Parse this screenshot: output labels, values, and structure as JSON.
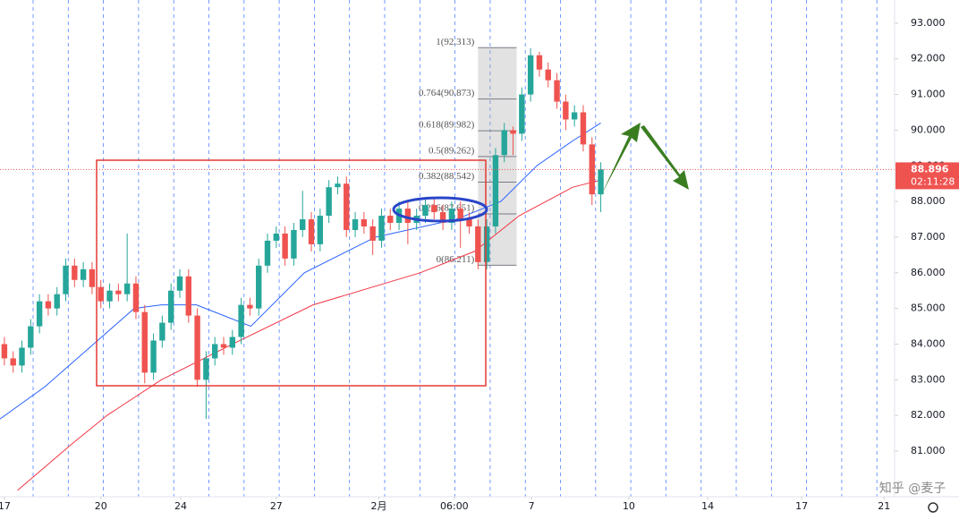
{
  "chart_data": {
    "type": "candlestick",
    "xlim": [
      -0.5,
      101.5
    ],
    "ylim": [
      79.72,
      93.65
    ],
    "yticks": [
      {
        "value": 81,
        "label": "81.000"
      },
      {
        "value": 82,
        "label": "82.000"
      },
      {
        "value": 83,
        "label": "83.000"
      },
      {
        "value": 84,
        "label": "84.000"
      },
      {
        "value": 85,
        "label": "85.000"
      },
      {
        "value": 86,
        "label": "86.000"
      },
      {
        "value": 87,
        "label": "87.000"
      },
      {
        "value": 88,
        "label": "88.000"
      },
      {
        "value": 89,
        "label": "89.000"
      },
      {
        "value": 90,
        "label": "90.000"
      },
      {
        "value": 91,
        "label": "91.000"
      },
      {
        "value": 92,
        "label": "92.000"
      },
      {
        "value": 93,
        "label": "93.000"
      }
    ],
    "xticks": [
      {
        "value": 0,
        "label": "17"
      },
      {
        "value": 11,
        "label": "20"
      },
      {
        "value": 20.1,
        "label": "24"
      },
      {
        "value": 31,
        "label": "27"
      },
      {
        "value": 42.7,
        "label": "2月"
      },
      {
        "value": 51.3,
        "label": "06:00"
      },
      {
        "value": 60.1,
        "label": "7"
      },
      {
        "value": 71.2,
        "label": "10"
      },
      {
        "value": 80.2,
        "label": "14"
      },
      {
        "value": 90.9,
        "label": "17"
      },
      {
        "value": 100.3,
        "label": "21"
      }
    ],
    "up_color": "#26a69a",
    "down_color": "#ef5350",
    "open": [
      84.0,
      83.6,
      83.4,
      83.9,
      84.5,
      85.2,
      85.0,
      85.4,
      86.2,
      85.8,
      86.1,
      85.6,
      85.2,
      85.5,
      85.4,
      85.7,
      84.9,
      83.2,
      84.1,
      84.6,
      85.5,
      85.9,
      84.8,
      83.0,
      83.6,
      84.0,
      83.9,
      84.2,
      85.1,
      85.0,
      86.2,
      86.9,
      87.1,
      86.4,
      87.2,
      87.5,
      86.8,
      87.6,
      88.4,
      88.5,
      87.2,
      87.5,
      87.3,
      86.9,
      87.6,
      87.4,
      87.8,
      87.4,
      87.6,
      87.9,
      87.7,
      87.4,
      87.8,
      87.5,
      87.3,
      86.3,
      87.3,
      89.3,
      90.0,
      89.9,
      91.0,
      92.1,
      91.7,
      91.4,
      90.8,
      90.3,
      90.5,
      89.6,
      88.2
    ],
    "high": [
      84.2,
      83.8,
      84.1,
      84.7,
      85.4,
      85.4,
      85.6,
      86.4,
      86.4,
      86.3,
      86.3,
      85.8,
      85.7,
      85.7,
      87.1,
      85.9,
      85.1,
      84.3,
      84.8,
      85.7,
      86.1,
      86.1,
      85.0,
      83.8,
      84.2,
      84.2,
      84.4,
      85.3,
      85.3,
      86.4,
      87.1,
      87.3,
      87.3,
      87.4,
      88.3,
      87.7,
      87.8,
      88.6,
      88.7,
      88.7,
      87.7,
      87.7,
      87.5,
      87.8,
      87.8,
      88.0,
      88.0,
      87.8,
      88.1,
      88.1,
      87.9,
      88.0,
      88.0,
      87.7,
      87.5,
      87.5,
      89.5,
      90.2,
      90.1,
      91.2,
      92.3,
      92.2,
      91.9,
      91.6,
      91.0,
      90.7,
      90.7,
      89.8,
      89.1
    ],
    "low": [
      83.4,
      83.2,
      83.2,
      83.7,
      84.3,
      84.8,
      84.8,
      85.2,
      85.6,
      85.6,
      85.4,
      85.0,
      85.0,
      85.2,
      85.2,
      84.7,
      82.9,
      83.0,
      83.9,
      84.4,
      85.3,
      84.6,
      82.8,
      81.9,
      83.4,
      83.7,
      83.7,
      84.0,
      84.8,
      84.8,
      86.0,
      86.7,
      86.2,
      86.2,
      87.0,
      86.6,
      86.6,
      87.4,
      88.2,
      87.0,
      87.0,
      87.1,
      86.5,
      86.7,
      87.2,
      87.2,
      86.8,
      87.2,
      87.4,
      87.5,
      87.2,
      87.2,
      86.7,
      87.1,
      86.1,
      86.1,
      87.1,
      89.1,
      89.3,
      89.7,
      90.8,
      91.5,
      91.2,
      90.6,
      90.0,
      90.1,
      89.4,
      87.9,
      87.7
    ],
    "close": [
      83.6,
      83.4,
      83.9,
      84.5,
      85.2,
      85.0,
      85.4,
      86.2,
      85.8,
      86.1,
      85.6,
      85.2,
      85.5,
      85.4,
      85.7,
      84.9,
      83.2,
      84.1,
      84.6,
      85.5,
      85.9,
      84.8,
      83.0,
      83.6,
      84.0,
      83.9,
      84.2,
      85.1,
      85.0,
      86.2,
      86.9,
      87.1,
      86.4,
      87.2,
      87.5,
      86.8,
      87.6,
      88.4,
      88.5,
      87.2,
      87.5,
      87.3,
      86.9,
      87.6,
      87.4,
      87.8,
      87.4,
      87.6,
      87.9,
      87.7,
      87.4,
      87.8,
      87.5,
      87.3,
      86.3,
      87.3,
      89.3,
      90.0,
      89.9,
      91.0,
      92.1,
      91.7,
      91.4,
      90.8,
      90.3,
      90.5,
      89.6,
      88.2,
      88.9
    ],
    "series": [
      {
        "color": "#2962ff",
        "x": [
          -0.5,
          4.6,
          9.7,
          14.8,
          17.9,
          21.9,
          28.1,
          34.2,
          42.3,
          51.5,
          56.6,
          60.7,
          64.8,
          68.0
        ],
        "values": [
          81.9,
          82.8,
          83.9,
          85.0,
          85.1,
          85.1,
          84.5,
          86.0,
          87.0,
          87.5,
          88.0,
          89.0,
          89.7,
          90.2
        ]
      },
      {
        "color": "#f23645",
        "x": [
          1.5,
          7.7,
          11.7,
          17.9,
          26.0,
          35.2,
          47.4,
          53.6,
          58.7,
          64.8,
          68.0
        ],
        "values": [
          79.9,
          81.2,
          82.0,
          83.0,
          84.0,
          85.1,
          86.0,
          86.6,
          87.6,
          88.4,
          88.6
        ]
      }
    ],
    "fib_levels": [
      {
        "label": "1(92.313)",
        "value": 92.313
      },
      {
        "label": "0.764(90.873)",
        "value": 90.873
      },
      {
        "label": "0.618(89.982)",
        "value": 89.982
      },
      {
        "label": "0.5(89.262)",
        "value": 89.262
      },
      {
        "label": "0.382(88.542)",
        "value": 88.542
      },
      {
        "label": "0.236(87.651)",
        "value": 87.651
      },
      {
        "label": "0(86.211)",
        "value": 86.211
      }
    ],
    "fib_x": [
      54.0,
      58.4
    ],
    "last_price": {
      "value": 88.896,
      "label": "88.896",
      "countdown": "02:11:28"
    },
    "watermark": "知乎 @麦子"
  }
}
